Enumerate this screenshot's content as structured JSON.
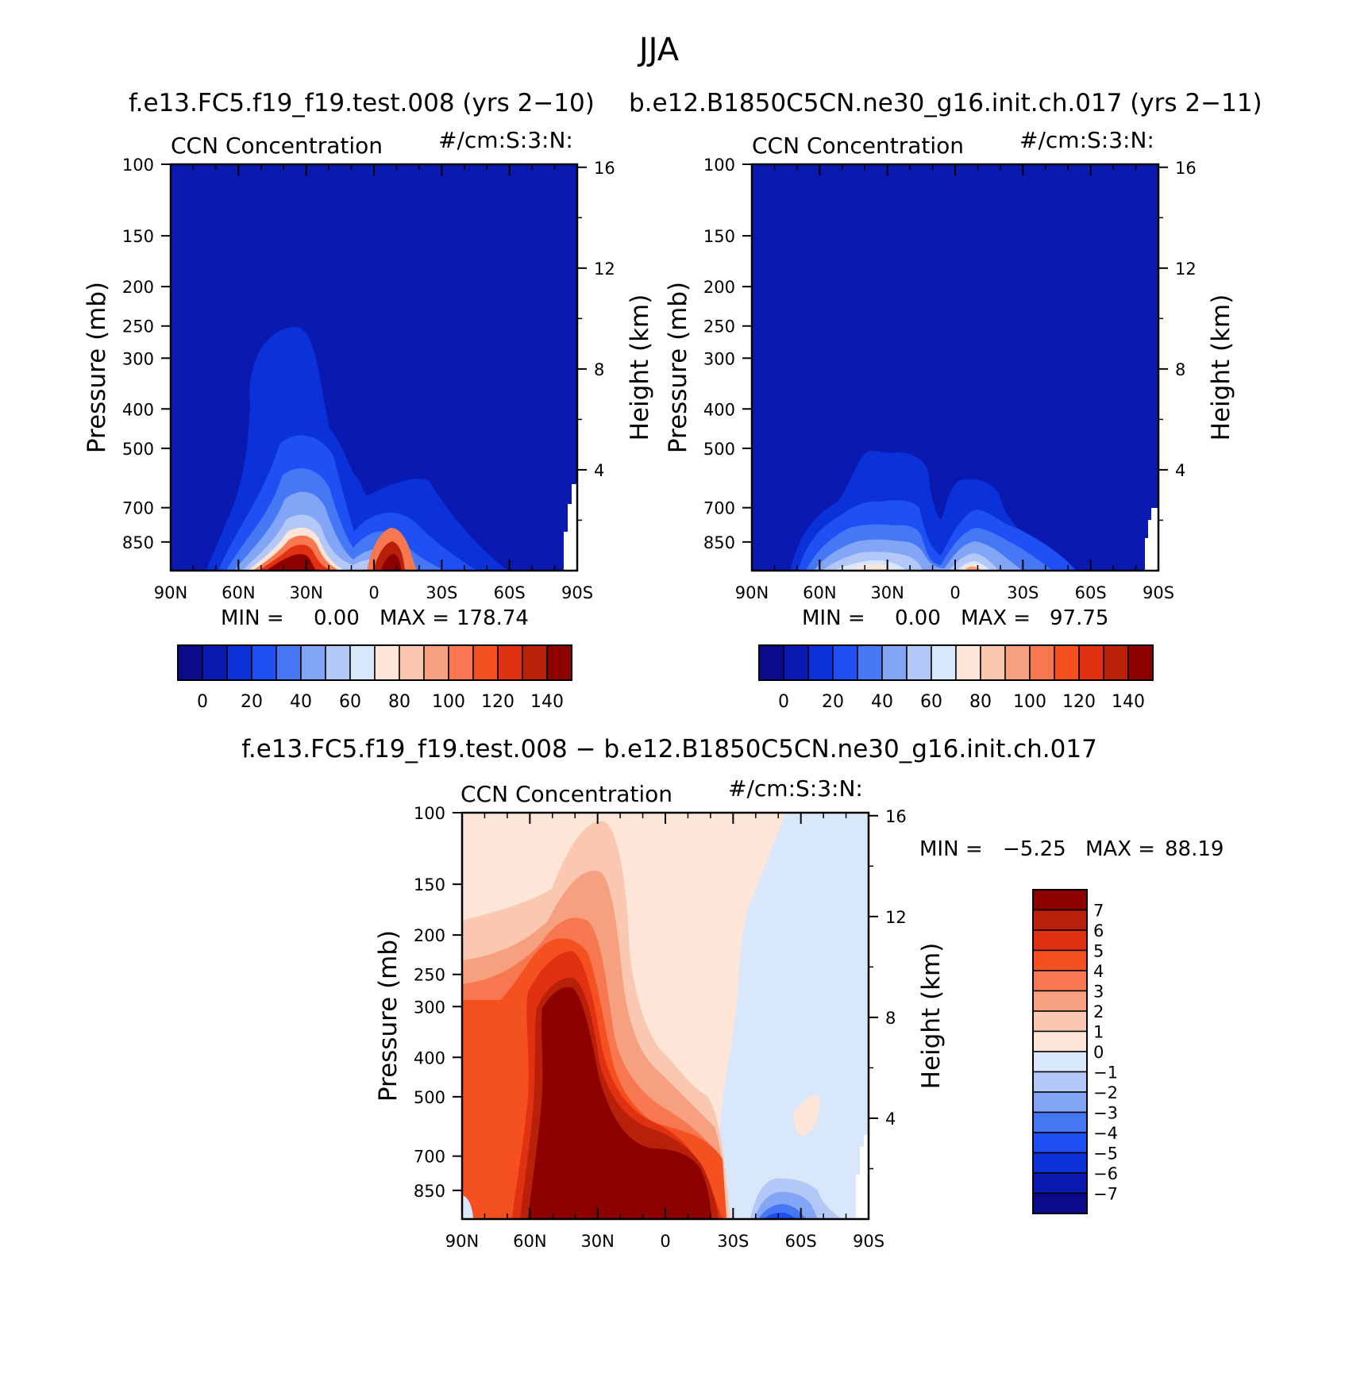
{
  "figure": {
    "season": "JJA",
    "title_left": "f.e13.FC5.f19_f19.test.008 (yrs 2−10)",
    "title_right": "b.e12.B1850C5CN.ne30_g16.init.ch.017 (yrs 2−11)",
    "title_diff": "f.e13.FC5.f19_f19.test.008 − b.e12.B1850C5CN.ne30_g16.init.ch.017"
  },
  "chart_data": [
    {
      "type": "heatmap",
      "name": "model1",
      "title": "CCN Concentration",
      "units": "#/cm:S:3:N:",
      "xlabel": "",
      "ylabel": "Pressure (mb)",
      "y2label": "Height (km)",
      "x_ticks": [
        "90N",
        "60N",
        "30N",
        "0",
        "30S",
        "60S",
        "90S"
      ],
      "y_ticks": [
        "100",
        "150",
        "200",
        "250",
        "300",
        "400",
        "500",
        "700",
        "850"
      ],
      "y2_ticks": [
        "16",
        "12",
        "8",
        "4"
      ],
      "min_label": "MIN =",
      "min_value": "0.00",
      "max_label": "MAX =",
      "max_value": "178.74",
      "colorbar_labels": [
        "0",
        "20",
        "40",
        "60",
        "80",
        "100",
        "120",
        "140"
      ],
      "colors": [
        "#0a0a8a",
        "#0a1ab0",
        "#0a32d8",
        "#1e50f5",
        "#4678f5",
        "#82a5f5",
        "#b4c8f8",
        "#d8e8fa",
        "#fde6d8",
        "#fac8b0",
        "#f7a080",
        "#f77850",
        "#f55020",
        "#e03212",
        "#b8200a",
        "#8c0000"
      ]
    },
    {
      "type": "heatmap",
      "name": "model2",
      "title": "CCN Concentration",
      "units": "#/cm:S:3:N:",
      "xlabel": "",
      "ylabel": "Pressure (mb)",
      "y2label": "Height (km)",
      "x_ticks": [
        "90N",
        "60N",
        "30N",
        "0",
        "30S",
        "60S",
        "90S"
      ],
      "y_ticks": [
        "100",
        "150",
        "200",
        "250",
        "300",
        "400",
        "500",
        "700",
        "850"
      ],
      "y2_ticks": [
        "16",
        "12",
        "8",
        "4"
      ],
      "min_label": "MIN =",
      "min_value": "0.00",
      "max_label": "MAX =",
      "max_value": "97.75",
      "colorbar_labels": [
        "0",
        "20",
        "40",
        "60",
        "80",
        "100",
        "120",
        "140"
      ],
      "colors": [
        "#0a0a8a",
        "#0a1ab0",
        "#0a32d8",
        "#1e50f5",
        "#4678f5",
        "#82a5f5",
        "#b4c8f8",
        "#d8e8fa",
        "#fde6d8",
        "#fac8b0",
        "#f7a080",
        "#f77850",
        "#f55020",
        "#e03212",
        "#b8200a",
        "#8c0000"
      ]
    },
    {
      "type": "heatmap",
      "name": "difference",
      "title": "CCN Concentration",
      "units": "#/cm:S:3:N:",
      "xlabel": "",
      "ylabel": "Pressure (mb)",
      "y2label": "Height (km)",
      "x_ticks": [
        "90N",
        "60N",
        "30N",
        "0",
        "30S",
        "60S",
        "90S"
      ],
      "y_ticks": [
        "100",
        "150",
        "200",
        "250",
        "300",
        "400",
        "500",
        "700",
        "850"
      ],
      "y2_ticks": [
        "16",
        "12",
        "8",
        "4"
      ],
      "min_label": "MIN =",
      "min_value": "−5.25",
      "max_label": "MAX =",
      "max_value": "88.19",
      "colorbar_labels": [
        "7",
        "6",
        "5",
        "4",
        "3",
        "2",
        "1",
        "0",
        "−1",
        "−2",
        "−3",
        "−4",
        "−5",
        "−6",
        "−7"
      ],
      "colors": [
        "#8c0000",
        "#b8200a",
        "#e03212",
        "#f55020",
        "#f77850",
        "#f7a080",
        "#fac8b0",
        "#fde6d8",
        "#d8e8fa",
        "#b4c8f8",
        "#82a5f5",
        "#4678f5",
        "#1e50f5",
        "#0a32d8",
        "#0a1ab0",
        "#0a0a8a"
      ]
    }
  ]
}
